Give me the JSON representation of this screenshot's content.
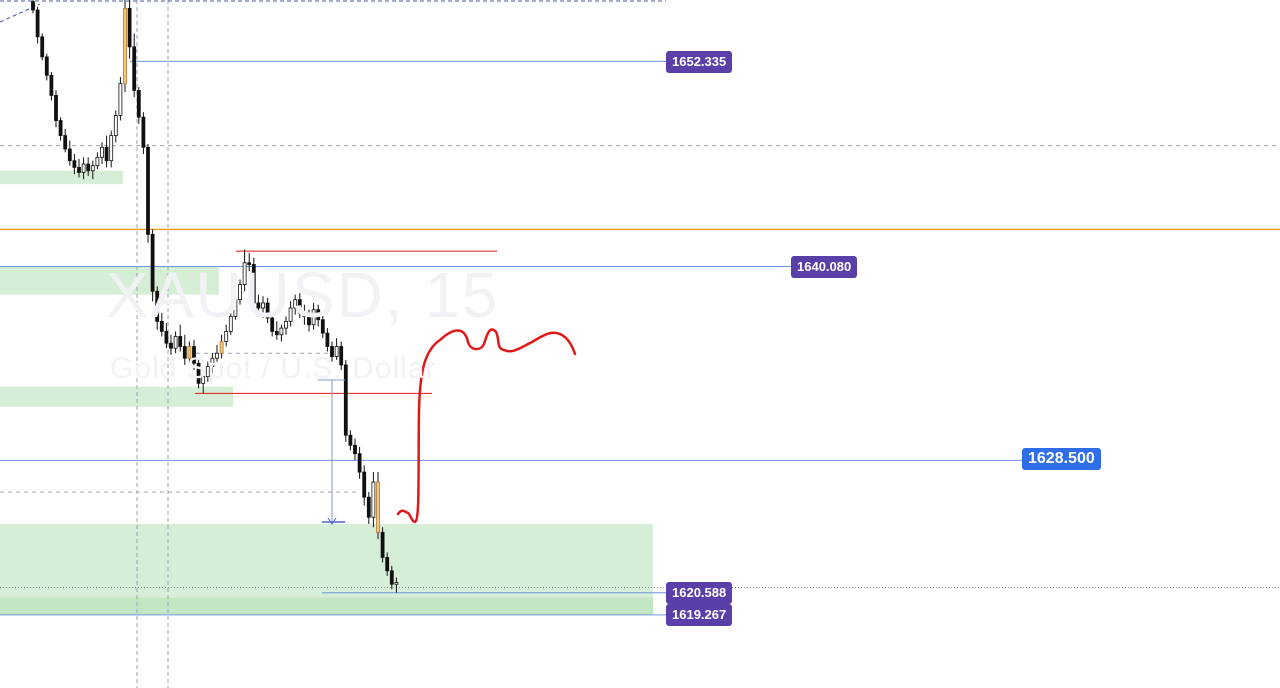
{
  "watermark": {
    "symbol": "XAUUSD, 15",
    "description": "Gold Spot / U.S. Dollar"
  },
  "colors": {
    "bull": "#ffffff",
    "bull_border": "#111111",
    "bear": "#111111",
    "highlight": "#f5c57a",
    "zone": "#d7eed6",
    "zone_strong": "#c3e6c4",
    "price_line": "#6d96e0",
    "orange_line": "#f0a020",
    "red_line": "#e01818",
    "label_purple": "#5b3fa8",
    "label_blue": "#2f6ee8",
    "grid_dash": "#9aa3b3"
  },
  "chart_data": {
    "type": "candlestick",
    "symbol": "XAUUSD",
    "timeframe": "15",
    "y_range": [
      1614.9,
      1656.0
    ],
    "price_labels": [
      {
        "value": 1652.335,
        "text": "1652.335",
        "style": "purple"
      },
      {
        "value": 1640.08,
        "text": "1640.080",
        "style": "purple"
      },
      {
        "value": 1628.5,
        "text": "1628.500",
        "style": "blue"
      },
      {
        "value": 1620.588,
        "text": "1620.588",
        "style": "purple"
      },
      {
        "value": 1619.267,
        "text": "1619.267",
        "style": "purple"
      }
    ],
    "horizontal_levels": [
      {
        "value": 1652.335,
        "style": "blue"
      },
      {
        "value": 1647.3,
        "style": "dashed"
      },
      {
        "value": 1642.3,
        "style": "orange"
      },
      {
        "value": 1641.0,
        "style": "red"
      },
      {
        "value": 1640.08,
        "style": "blue"
      },
      {
        "value": 1634.9,
        "style": "dashed"
      },
      {
        "value": 1632.5,
        "style": "red"
      },
      {
        "value": 1628.5,
        "style": "blue"
      },
      {
        "value": 1626.6,
        "style": "dashed"
      },
      {
        "value": 1620.588,
        "style": "blue"
      },
      {
        "value": 1620.9,
        "style": "dotted"
      },
      {
        "value": 1619.267,
        "style": "blue"
      }
    ],
    "demand_zones": [
      {
        "from": 1645.8,
        "to": 1645.0
      },
      {
        "from": 1640.1,
        "to": 1638.4
      },
      {
        "from": 1632.9,
        "to": 1631.7
      },
      {
        "from": 1624.7,
        "to": 1619.3
      }
    ],
    "candles": [
      {
        "o": 1655.9,
        "h": 1656.0,
        "l": 1655.2,
        "c": 1655.4
      },
      {
        "o": 1655.4,
        "h": 1655.6,
        "l": 1653.4,
        "c": 1653.8
      },
      {
        "o": 1653.8,
        "h": 1654.0,
        "l": 1652.4,
        "c": 1652.6
      },
      {
        "o": 1652.6,
        "h": 1652.8,
        "l": 1651.2,
        "c": 1651.5
      },
      {
        "o": 1651.5,
        "h": 1651.7,
        "l": 1650.0,
        "c": 1650.3
      },
      {
        "o": 1650.3,
        "h": 1650.6,
        "l": 1648.4,
        "c": 1648.8
      },
      {
        "o": 1648.8,
        "h": 1649.0,
        "l": 1647.6,
        "c": 1647.9
      },
      {
        "o": 1647.9,
        "h": 1648.3,
        "l": 1646.9,
        "c": 1647.1
      },
      {
        "o": 1647.1,
        "h": 1647.6,
        "l": 1646.1,
        "c": 1646.4
      },
      {
        "o": 1646.4,
        "h": 1646.8,
        "l": 1645.6,
        "c": 1646.0
      },
      {
        "o": 1646.0,
        "h": 1646.5,
        "l": 1645.4,
        "c": 1645.7
      },
      {
        "o": 1645.7,
        "h": 1646.6,
        "l": 1645.3,
        "c": 1646.2
      },
      {
        "o": 1646.2,
        "h": 1646.6,
        "l": 1645.5,
        "c": 1645.8
      },
      {
        "o": 1645.8,
        "h": 1646.4,
        "l": 1645.3,
        "c": 1646.1
      },
      {
        "o": 1646.1,
        "h": 1646.9,
        "l": 1645.9,
        "c": 1646.6
      },
      {
        "o": 1646.6,
        "h": 1647.5,
        "l": 1646.2,
        "c": 1647.2
      },
      {
        "o": 1647.2,
        "h": 1647.9,
        "l": 1646.0,
        "c": 1646.4
      },
      {
        "o": 1646.4,
        "h": 1648.2,
        "l": 1646.0,
        "c": 1647.9
      },
      {
        "o": 1647.9,
        "h": 1649.4,
        "l": 1647.5,
        "c": 1649.1
      },
      {
        "o": 1649.1,
        "h": 1651.4,
        "l": 1648.8,
        "c": 1651.0
      },
      {
        "o": 1651.0,
        "h": 1656.0,
        "l": 1650.5,
        "c": 1655.5,
        "highlight": true
      },
      {
        "o": 1655.5,
        "h": 1656.0,
        "l": 1652.5,
        "c": 1653.2
      },
      {
        "o": 1653.2,
        "h": 1654.0,
        "l": 1650.2,
        "c": 1650.6
      },
      {
        "o": 1650.6,
        "h": 1650.8,
        "l": 1648.6,
        "c": 1649.0
      },
      {
        "o": 1649.0,
        "h": 1649.3,
        "l": 1646.8,
        "c": 1647.2
      },
      {
        "o": 1647.2,
        "h": 1647.4,
        "l": 1641.5,
        "c": 1642.0
      },
      {
        "o": 1642.0,
        "h": 1642.3,
        "l": 1638.0,
        "c": 1638.6
      },
      {
        "o": 1638.6,
        "h": 1638.9,
        "l": 1636.3,
        "c": 1636.8
      },
      {
        "o": 1636.8,
        "h": 1637.3,
        "l": 1635.9,
        "c": 1636.2
      },
      {
        "o": 1636.2,
        "h": 1636.7,
        "l": 1635.2,
        "c": 1635.5
      },
      {
        "o": 1635.5,
        "h": 1636.0,
        "l": 1634.8,
        "c": 1635.2
      },
      {
        "o": 1635.2,
        "h": 1636.2,
        "l": 1634.9,
        "c": 1635.9
      },
      {
        "o": 1635.9,
        "h": 1636.6,
        "l": 1635.0,
        "c": 1635.3
      },
      {
        "o": 1635.3,
        "h": 1636.0,
        "l": 1634.2,
        "c": 1634.6
      },
      {
        "o": 1634.6,
        "h": 1635.6,
        "l": 1634.3,
        "c": 1635.3,
        "highlight": true
      },
      {
        "o": 1635.3,
        "h": 1635.7,
        "l": 1633.9,
        "c": 1634.3
      },
      {
        "o": 1634.3,
        "h": 1634.5,
        "l": 1632.8,
        "c": 1633.1
      },
      {
        "o": 1633.1,
        "h": 1633.7,
        "l": 1632.5,
        "c": 1633.5
      },
      {
        "o": 1633.5,
        "h": 1634.4,
        "l": 1633.2,
        "c": 1634.1
      },
      {
        "o": 1634.1,
        "h": 1634.9,
        "l": 1633.7,
        "c": 1634.6
      },
      {
        "o": 1634.6,
        "h": 1635.4,
        "l": 1634.4,
        "c": 1634.9
      },
      {
        "o": 1634.9,
        "h": 1636.0,
        "l": 1634.6,
        "c": 1635.6,
        "highlight": true
      },
      {
        "o": 1635.6,
        "h": 1636.6,
        "l": 1635.3,
        "c": 1636.2
      },
      {
        "o": 1636.2,
        "h": 1637.4,
        "l": 1636.0,
        "c": 1637.1
      },
      {
        "o": 1637.1,
        "h": 1638.4,
        "l": 1636.9,
        "c": 1638.1
      },
      {
        "o": 1638.1,
        "h": 1639.3,
        "l": 1637.8,
        "c": 1639.0
      },
      {
        "o": 1639.0,
        "h": 1641.1,
        "l": 1638.6,
        "c": 1640.3
      },
      {
        "o": 1640.3,
        "h": 1640.9,
        "l": 1639.8,
        "c": 1640.2
      },
      {
        "o": 1640.2,
        "h": 1640.6,
        "l": 1637.4,
        "c": 1637.9
      },
      {
        "o": 1637.9,
        "h": 1638.4,
        "l": 1637.1,
        "c": 1637.6
      },
      {
        "o": 1637.6,
        "h": 1638.3,
        "l": 1637.0,
        "c": 1637.9
      },
      {
        "o": 1637.9,
        "h": 1638.2,
        "l": 1636.7,
        "c": 1637.0
      },
      {
        "o": 1637.0,
        "h": 1637.3,
        "l": 1635.9,
        "c": 1636.2
      },
      {
        "o": 1636.2,
        "h": 1636.8,
        "l": 1635.7,
        "c": 1636.0
      },
      {
        "o": 1636.0,
        "h": 1636.6,
        "l": 1635.6,
        "c": 1636.4
      },
      {
        "o": 1636.4,
        "h": 1637.1,
        "l": 1636.0,
        "c": 1636.8
      },
      {
        "o": 1636.8,
        "h": 1638.0,
        "l": 1636.5,
        "c": 1637.6
      },
      {
        "o": 1637.6,
        "h": 1638.4,
        "l": 1637.2,
        "c": 1638.1
      },
      {
        "o": 1638.1,
        "h": 1638.5,
        "l": 1637.0,
        "c": 1637.3
      },
      {
        "o": 1637.3,
        "h": 1637.8,
        "l": 1636.6,
        "c": 1637.1
      },
      {
        "o": 1637.1,
        "h": 1637.5,
        "l": 1636.2,
        "c": 1636.6
      },
      {
        "o": 1636.6,
        "h": 1637.9,
        "l": 1636.3,
        "c": 1637.5
      },
      {
        "o": 1637.5,
        "h": 1637.8,
        "l": 1636.5,
        "c": 1636.9
      },
      {
        "o": 1636.9,
        "h": 1637.2,
        "l": 1635.8,
        "c": 1636.1
      },
      {
        "o": 1636.1,
        "h": 1636.4,
        "l": 1635.0,
        "c": 1635.3
      },
      {
        "o": 1635.3,
        "h": 1635.6,
        "l": 1634.4,
        "c": 1634.7
      },
      {
        "o": 1634.7,
        "h": 1635.8,
        "l": 1634.5,
        "c": 1635.3
      },
      {
        "o": 1635.3,
        "h": 1635.6,
        "l": 1633.9,
        "c": 1634.2
      },
      {
        "o": 1634.2,
        "h": 1634.5,
        "l": 1629.6,
        "c": 1630.0
      },
      {
        "o": 1630.0,
        "h": 1630.3,
        "l": 1629.1,
        "c": 1629.4
      },
      {
        "o": 1629.4,
        "h": 1629.8,
        "l": 1628.5,
        "c": 1628.9
      },
      {
        "o": 1628.9,
        "h": 1629.3,
        "l": 1627.4,
        "c": 1627.8
      },
      {
        "o": 1627.8,
        "h": 1628.2,
        "l": 1625.8,
        "c": 1626.3
      },
      {
        "o": 1626.3,
        "h": 1626.6,
        "l": 1624.7,
        "c": 1625.1
      },
      {
        "o": 1625.1,
        "h": 1627.8,
        "l": 1624.5,
        "c": 1627.2
      },
      {
        "o": 1627.2,
        "h": 1627.8,
        "l": 1623.8,
        "c": 1624.2,
        "highlight": true
      },
      {
        "o": 1624.2,
        "h": 1624.5,
        "l": 1622.4,
        "c": 1622.7
      },
      {
        "o": 1622.7,
        "h": 1623.0,
        "l": 1621.6,
        "c": 1621.9
      },
      {
        "o": 1621.9,
        "h": 1622.2,
        "l": 1620.8,
        "c": 1621.1
      },
      {
        "o": 1621.1,
        "h": 1621.5,
        "l": 1620.6,
        "c": 1621.2
      }
    ]
  }
}
